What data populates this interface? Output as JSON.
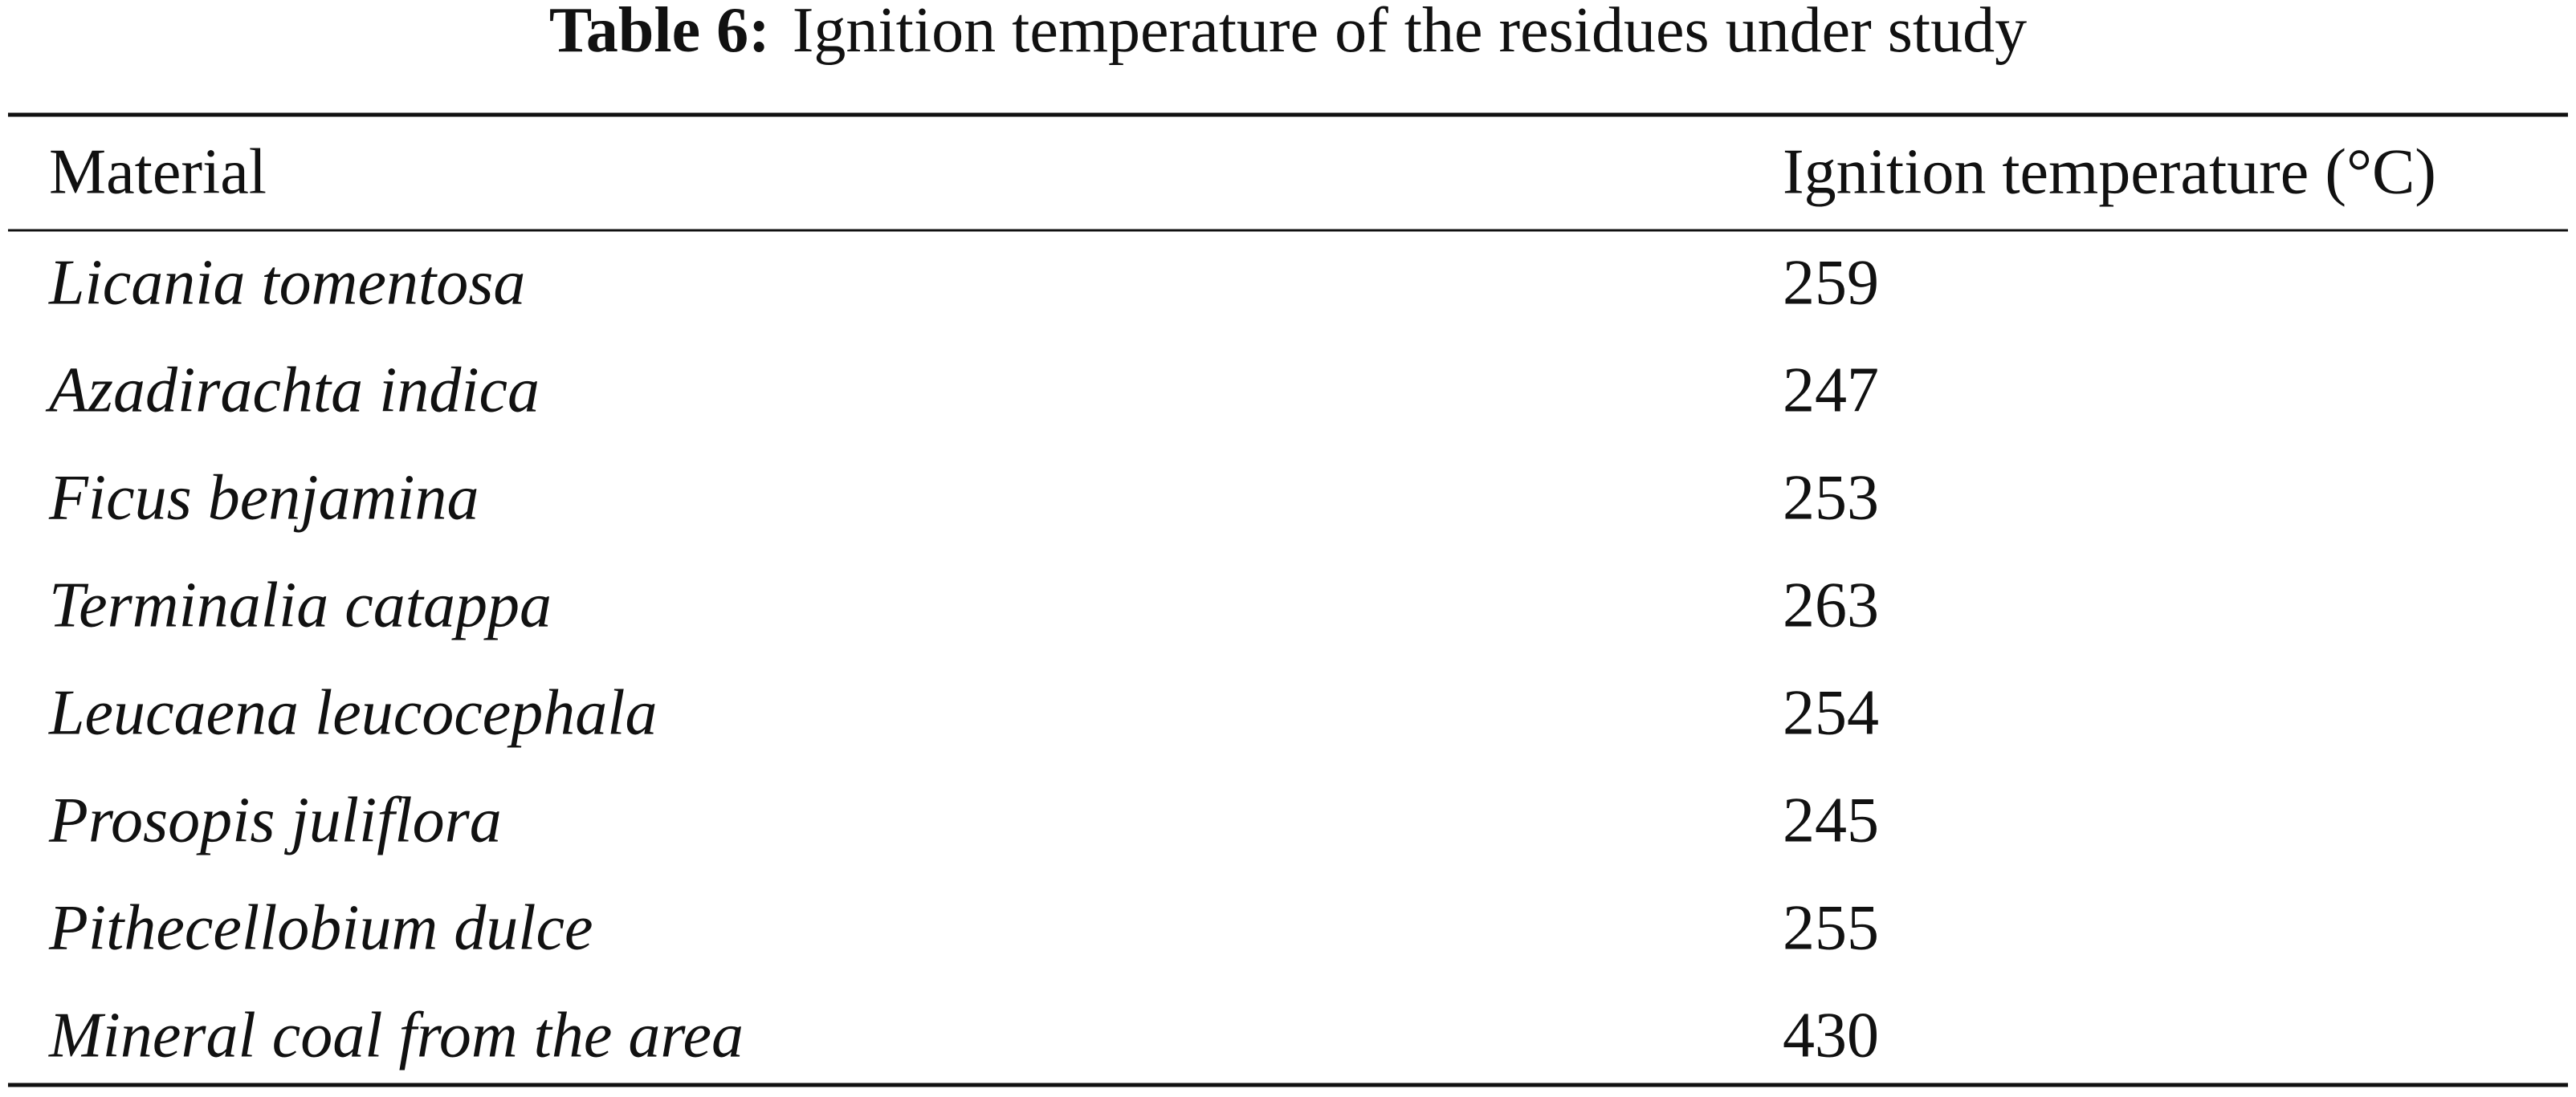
{
  "caption": {
    "label": "Table 6:",
    "text": "Ignition temperature of the residues under study"
  },
  "table": {
    "headers": [
      "Material",
      "Ignition temperature (°C)"
    ],
    "rows": [
      [
        "Licania tomentosa",
        259
      ],
      [
        "Azadirachta indica",
        247
      ],
      [
        "Ficus benjamina",
        253
      ],
      [
        "Terminalia catappa",
        263
      ],
      [
        "Leucaena leucocephala",
        254
      ],
      [
        "Prosopis juliflora",
        245
      ],
      [
        "Pithecellobium dulce",
        255
      ],
      [
        "Mineral coal from the area",
        430
      ]
    ]
  }
}
